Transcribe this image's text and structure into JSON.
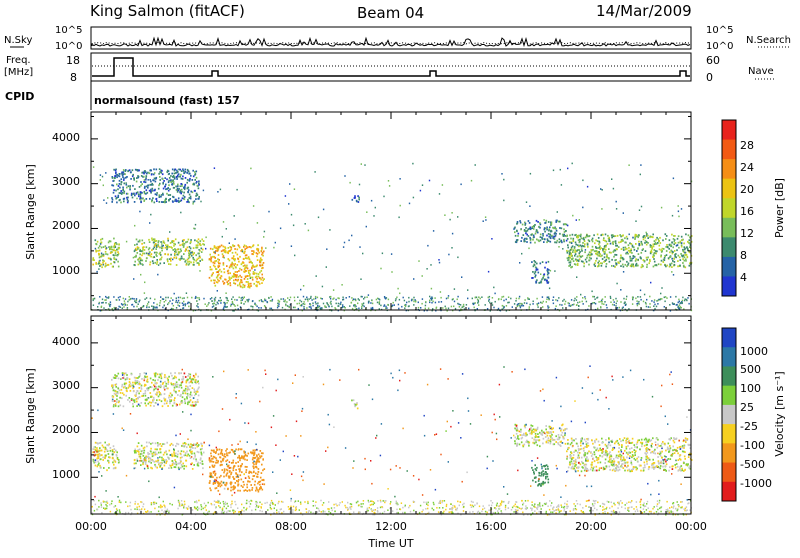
{
  "header": {
    "station": "King Salmon (fitACF)",
    "beam": "Beam 04",
    "date": "14/Mar/2009"
  },
  "noise_panel": {
    "left_label": "N.Sky",
    "right_label": "N.Search",
    "y_ticks": [
      "10^5",
      "10^0"
    ],
    "y_ticks_right": [
      "10^5",
      "10^0"
    ]
  },
  "freq_panel": {
    "left_label_line1": "Freq.",
    "left_label_line2": "[MHz]",
    "right_label": "Nave",
    "y_ticks_left": [
      "18",
      "8"
    ],
    "y_ticks_right": [
      "60",
      "0"
    ]
  },
  "cpid_panel": {
    "label": "CPID",
    "text": "normalsound (fast) 157"
  },
  "power_panel": {
    "ylabel": "Slant Range [km]",
    "y_ticks": [
      "4000",
      "3000",
      "2000",
      "1000"
    ],
    "colorbar_label": "Power [dB]",
    "colorbar_ticks": [
      "28",
      "24",
      "20",
      "16",
      "12",
      "8",
      "4"
    ],
    "colorbar_colors": [
      "#e8231d",
      "#f25a14",
      "#f58e16",
      "#ecc312",
      "#c0d62a",
      "#78bd5a",
      "#3c8a6e",
      "#2563a6",
      "#2036d0"
    ]
  },
  "velocity_panel": {
    "ylabel": "Slant Range [km]",
    "y_ticks": [
      "4000",
      "3000",
      "2000",
      "1000"
    ],
    "colorbar_label": "Velocity [m s⁻¹]",
    "colorbar_ticks": [
      "1000",
      "500",
      "100",
      "25",
      "-25",
      "-100",
      "-500",
      "-1000"
    ],
    "colorbar_colors": [
      "#2046c4",
      "#2c78a6",
      "#3d8e5a",
      "#7ccf3a",
      "#c8c8c8",
      "#f6d020",
      "#f2981c",
      "#ee5a16",
      "#e21c1c"
    ]
  },
  "x_axis": {
    "label": "Time UT",
    "ticks": [
      "00:00",
      "04:00",
      "08:00",
      "12:00",
      "16:00",
      "20:00",
      "00:00"
    ]
  },
  "chart_data": [
    {
      "type": "heatmap",
      "name": "power",
      "x_range_hours": [
        0,
        24
      ],
      "y_range_km": [
        180,
        4600
      ],
      "value_unit": "dB",
      "color_range": [
        0,
        32
      ],
      "regions": [
        {
          "t": [
            0.05,
            1.1
          ],
          "r": [
            1150,
            1800
          ],
          "value": 14
        },
        {
          "t": [
            1.7,
            4.5
          ],
          "r": [
            1200,
            1800
          ],
          "value": 14
        },
        {
          "t": [
            0.8,
            4.3
          ],
          "r": [
            2600,
            3350
          ],
          "value": 7
        },
        {
          "t": [
            4.7,
            6.9
          ],
          "r": [
            700,
            1650
          ],
          "value": 20
        },
        {
          "t": [
            16.9,
            19.0
          ],
          "r": [
            1700,
            2200
          ],
          "value": 8
        },
        {
          "t": [
            19.0,
            24.0
          ],
          "r": [
            1150,
            1900
          ],
          "value": 12
        },
        {
          "t": [
            17.6,
            18.3
          ],
          "r": [
            800,
            1300
          ],
          "value": 7
        },
        {
          "t": [
            10.4,
            10.7
          ],
          "r": [
            2550,
            2750
          ],
          "value": 6
        }
      ]
    },
    {
      "type": "heatmap",
      "name": "velocity",
      "x_range_hours": [
        0,
        24
      ],
      "y_range_km": [
        180,
        4600
      ],
      "value_unit": "m s^-1",
      "color_range": [
        -1000,
        1000
      ],
      "regions": [
        {
          "t": [
            0.05,
            1.1
          ],
          "r": [
            1150,
            1800
          ],
          "value": 0
        },
        {
          "t": [
            1.7,
            4.5
          ],
          "r": [
            1200,
            1800
          ],
          "value": 0
        },
        {
          "t": [
            0.8,
            4.3
          ],
          "r": [
            2600,
            3350
          ],
          "value": 0
        },
        {
          "t": [
            4.7,
            6.9
          ],
          "r": [
            700,
            1650
          ],
          "value": -200
        },
        {
          "t": [
            16.9,
            19.0
          ],
          "r": [
            1700,
            2200
          ],
          "value": 0
        },
        {
          "t": [
            19.0,
            24.0
          ],
          "r": [
            1150,
            1900
          ],
          "value": 0
        },
        {
          "t": [
            17.6,
            18.3
          ],
          "r": [
            800,
            1300
          ],
          "value": 150
        },
        {
          "t": [
            10.4,
            10.7
          ],
          "r": [
            2550,
            2750
          ],
          "value": 0
        }
      ]
    }
  ]
}
